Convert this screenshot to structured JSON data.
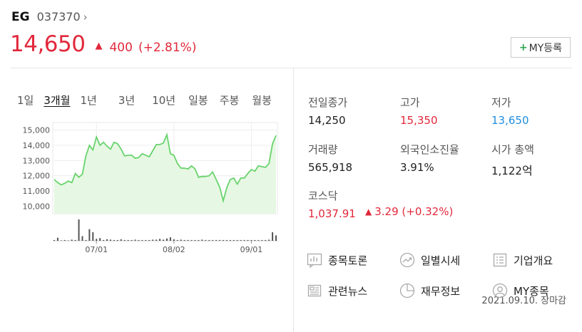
{
  "header": {
    "name": "EG",
    "code": "037370",
    "chevron": "›"
  },
  "price": {
    "current": "14,650",
    "arrow": "▲",
    "change": "400",
    "change_pct": "(+2.81%)"
  },
  "my_button": {
    "plus": "+",
    "label": "MY등록"
  },
  "periods": [
    "1일",
    "3개월",
    "1년",
    "3년",
    "10년",
    "일봉",
    "주봉",
    "월봉"
  ],
  "active_period": "3개월",
  "stats": {
    "prev_close_label": "전일종가",
    "prev_close": "14,250",
    "high_label": "고가",
    "high": "15,350",
    "low_label": "저가",
    "low": "13,650",
    "volume_label": "거래량",
    "volume": "565,918",
    "foreign_label": "외국인소진율",
    "foreign": "3.91%",
    "mcap_label": "시가 총액",
    "mcap": "1,122",
    "mcap_unit": "억",
    "kospi_label": "코스닥",
    "kospi_value": "1,037.91",
    "kospi_arrow": "▲",
    "kospi_change": "3.29 (+0.32%)"
  },
  "links": {
    "discussion": "종목토론",
    "daily": "일별시세",
    "company": "기업개요",
    "news": "관련뉴스",
    "finance": "재무정보",
    "my": "MY종목"
  },
  "chart_date": "2021.09.10. 장마감",
  "colors": {
    "up": "#e2283b",
    "down": "#1f8ee0",
    "line": "#69d36d",
    "area": "#e6f8e3"
  },
  "chart_data": {
    "type": "area",
    "y_ticks": [
      "15,000",
      "14,000",
      "13,000",
      "12,000",
      "11,000",
      "10,000"
    ],
    "y_tick_values": [
      15000,
      14000,
      13000,
      12000,
      11000,
      10000
    ],
    "ylim": [
      9500,
      15500
    ],
    "x_tick_labels": [
      "07/01",
      "08/02",
      "09/01"
    ],
    "x_tick_index": [
      12,
      34,
      56
    ],
    "prices": [
      11750,
      11550,
      11400,
      11500,
      11650,
      11550,
      12150,
      11900,
      12100,
      13300,
      14000,
      13700,
      14550,
      14000,
      14200,
      13950,
      13750,
      14200,
      14100,
      13750,
      13300,
      13350,
      13350,
      13150,
      13200,
      13450,
      13350,
      13250,
      13650,
      14050,
      14050,
      14150,
      14700,
      13450,
      13350,
      12800,
      12500,
      12500,
      12450,
      12650,
      12450,
      11900,
      11950,
      11950,
      12000,
      12250,
      11750,
      11250,
      10350,
      11200,
      11750,
      11850,
      11450,
      11850,
      11850,
      12150,
      12400,
      12300,
      12650,
      12600,
      12550,
      12800,
      14100,
      14650
    ],
    "volumes": [
      2,
      8,
      1,
      2,
      1,
      3,
      2,
      55,
      12,
      2,
      30,
      22,
      5,
      7,
      2,
      4,
      3,
      2,
      2,
      4,
      2,
      2,
      2,
      3,
      2,
      2,
      2,
      2,
      3,
      3,
      5,
      3,
      6,
      9,
      4,
      2,
      3,
      2,
      2,
      2,
      2,
      2,
      3,
      2,
      2,
      2,
      2,
      2,
      2,
      2,
      2,
      2,
      2,
      2,
      2,
      2,
      2,
      2,
      2,
      2,
      2,
      3,
      22,
      14
    ]
  }
}
